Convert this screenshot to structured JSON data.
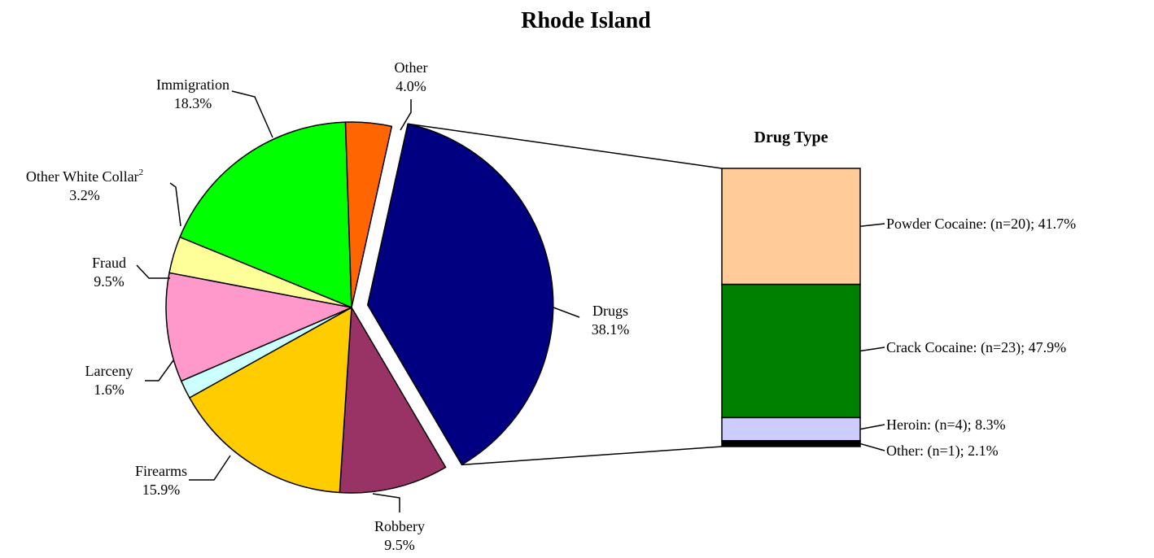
{
  "chart_data": [
    {
      "type": "pie",
      "title": "Rhode Island",
      "slices": [
        {
          "label": "Drugs",
          "value": 38.1,
          "pct_label": "38.1%",
          "color": "#000080",
          "exploded": true
        },
        {
          "label": "Robbery",
          "value": 9.5,
          "pct_label": "9.5%",
          "color": "#993366"
        },
        {
          "label": "Firearms",
          "value": 15.9,
          "pct_label": "15.9%",
          "color": "#FFCC00"
        },
        {
          "label": "Larceny",
          "value": 1.6,
          "pct_label": "1.6%",
          "color": "#CCFFFF"
        },
        {
          "label": "Fraud",
          "value": 9.5,
          "pct_label": "9.5%",
          "color": "#FF99CC"
        },
        {
          "label": "Other White Collar",
          "superscript": "2",
          "value": 3.2,
          "pct_label": "3.2%",
          "color": "#FFFF99"
        },
        {
          "label": "Immigration",
          "value": 18.3,
          "pct_label": "18.3%",
          "color": "#00FF00"
        },
        {
          "label": "Other",
          "value": 4.0,
          "pct_label": "4.0%",
          "color": "#FF6600"
        }
      ]
    },
    {
      "type": "bar",
      "stacked": true,
      "title": "Drug Type",
      "segments": [
        {
          "label": "Powder Cocaine: (n=20); 41.7%",
          "value": 41.7,
          "color": "#FFCC99"
        },
        {
          "label": "Crack Cocaine: (n=23); 47.9%",
          "value": 47.9,
          "color": "#008000"
        },
        {
          "label": "Heroin: (n=4); 8.3%",
          "value": 8.3,
          "color": "#CCCCFF"
        },
        {
          "label": "Other: (n=1); 2.1%",
          "value": 2.1,
          "color": "#000000"
        }
      ]
    }
  ]
}
